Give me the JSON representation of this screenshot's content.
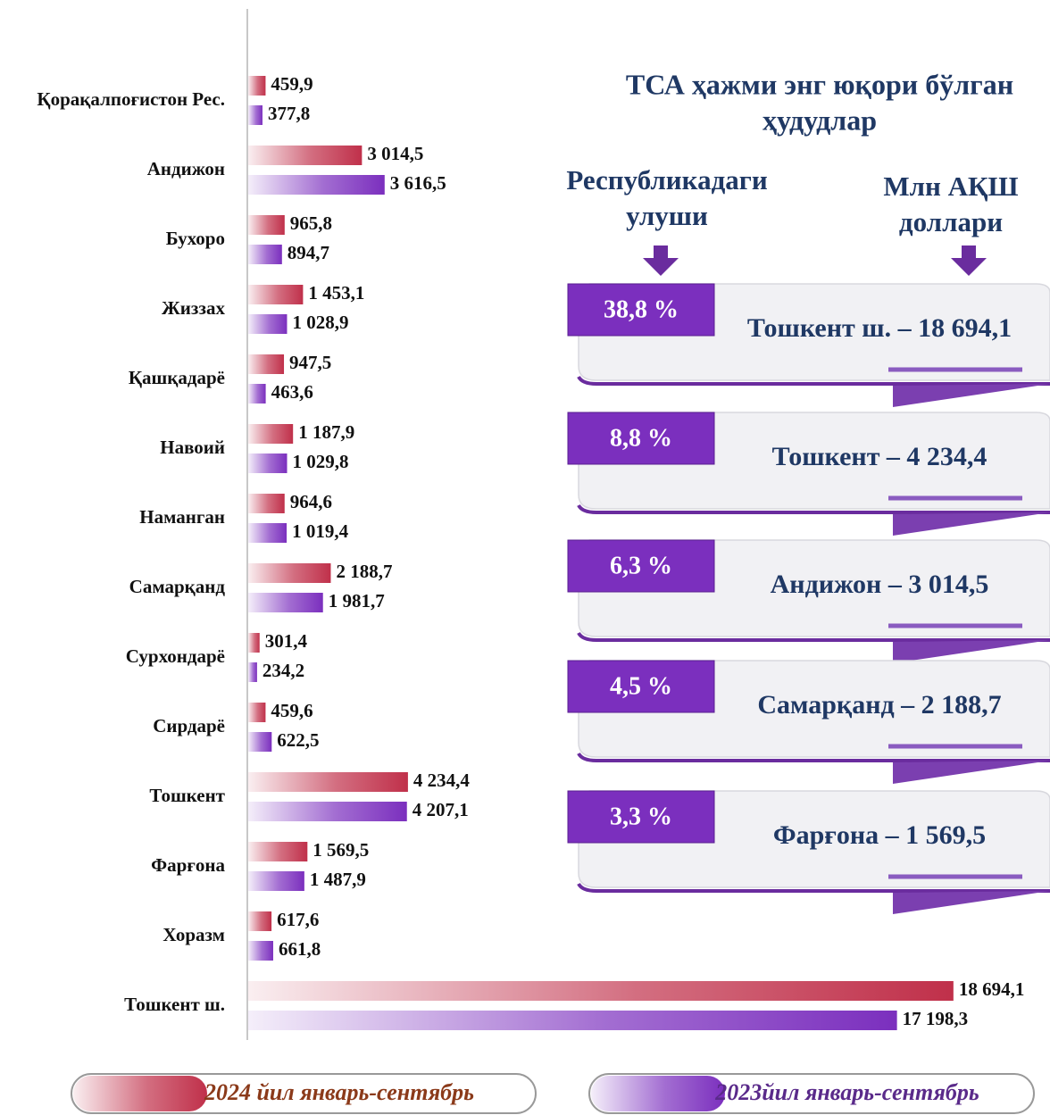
{
  "chart_data": {
    "type": "bar",
    "orientation": "horizontal",
    "categories": [
      "Қорақалпоғистон Рес.",
      "Андижон",
      "Бухоро",
      "Жиззах",
      "Қашқадарё",
      "Навоий",
      "Наманган",
      "Самарқанд",
      "Сурхондарё",
      "Сирдарё",
      "Тошкент",
      "Фарғона",
      "Хоразм",
      "Тошкент ш."
    ],
    "series": [
      {
        "name": "2024 йил январь-сентябрь",
        "color": "#c0304a",
        "values": [
          459.9,
          3014.5,
          965.8,
          1453.1,
          947.5,
          1187.9,
          964.6,
          2188.7,
          301.4,
          459.6,
          4234.4,
          1569.5,
          617.6,
          18694.1
        ],
        "value_labels": [
          "459,9",
          "3 014,5",
          "965,8",
          "1 453,1",
          "947,5",
          "1 187,9",
          "964,6",
          "2 188,7",
          "301,4",
          "459,6",
          "4 234,4",
          "1 569,5",
          "617,6",
          "18 694,1"
        ]
      },
      {
        "name": "2023йил январь-сентябрь",
        "color": "#7b2fbe",
        "values": [
          377.8,
          3616.5,
          894.7,
          1028.9,
          463.6,
          1029.8,
          1019.4,
          1981.7,
          234.2,
          622.5,
          4207.1,
          1487.9,
          661.8,
          17198.3
        ],
        "value_labels": [
          "377,8",
          "3 616,5",
          "894,7",
          "1 028,9",
          "463,6",
          "1 029,8",
          "1 019,4",
          "1 981,7",
          "234,2",
          "622,5",
          "4 207,1",
          "1 487,9",
          "661,8",
          "17 198,3"
        ]
      }
    ],
    "xlim": [
      0,
      20000
    ]
  },
  "panel": {
    "title": [
      "ТСА ҳажми энг юқори бўлган",
      "ҳудудлар"
    ],
    "share_header": [
      "Республикадаги",
      "улуши"
    ],
    "value_header": [
      "Млн АҚШ",
      "доллари"
    ],
    "items": [
      {
        "share": "38,8 %",
        "label": "Тошкент ш. – 18 694,1"
      },
      {
        "share": "8,8 %",
        "label": "Тошкент – 4 234,4"
      },
      {
        "share": "6,3 %",
        "label": "Андижон – 3 014,5"
      },
      {
        "share": "4,5 %",
        "label": "Самарқанд – 2 188,7"
      },
      {
        "share": "3,3 %",
        "label": "Фарғона – 1 569,5"
      }
    ]
  }
}
